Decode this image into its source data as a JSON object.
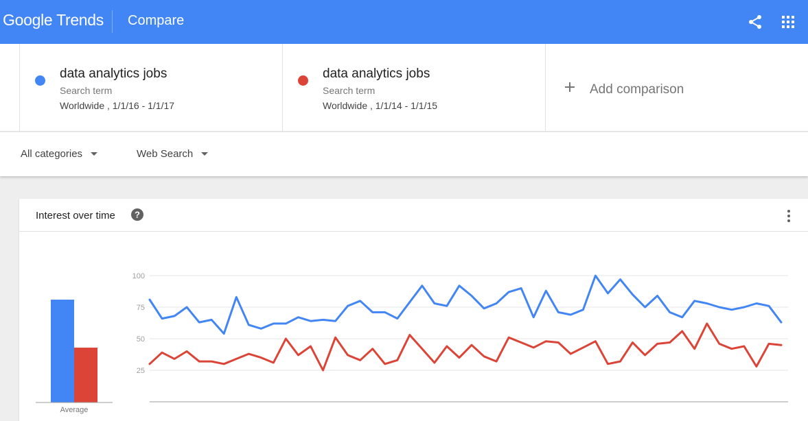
{
  "header": {
    "logo_google": "Google",
    "logo_trends": "Trends",
    "page_name": "Compare",
    "brand_color": "#4285f4",
    "icons": [
      "share-icon",
      "apps-grid-icon"
    ]
  },
  "terms": [
    {
      "name": "data analytics jobs",
      "type": "Search term",
      "range": "Worldwide , 1/1/16 - 1/1/17",
      "color": "#4285f4"
    },
    {
      "name": "data analytics jobs",
      "type": "Search term",
      "range": "Worldwide , 1/1/14 - 1/1/15",
      "color": "#db4437"
    }
  ],
  "add_comparison": {
    "label": "Add comparison",
    "icon": "plus-icon"
  },
  "filters": {
    "category": "All categories",
    "search_type": "Web Search"
  },
  "card": {
    "title": "Interest over time",
    "help_icon": "help-icon",
    "more_icon": "more-vert-icon"
  },
  "chart_data": {
    "type": "line",
    "title": "",
    "xlabel": "",
    "ylabel": "",
    "ylim": [
      0,
      100
    ],
    "yticks": [
      25,
      50,
      75,
      100
    ],
    "grid": true,
    "series": [
      {
        "name": "data analytics jobs",
        "color": "#4285f4",
        "values": [
          81,
          66,
          68,
          75,
          63,
          65,
          54,
          83,
          61,
          58,
          62,
          62,
          67,
          64,
          65,
          64,
          76,
          80,
          71,
          71,
          66,
          79,
          92,
          78,
          76,
          92,
          84,
          74,
          78,
          87,
          90,
          67,
          88,
          71,
          69,
          73,
          100,
          86,
          97,
          85,
          75,
          84,
          71,
          67,
          80,
          78,
          75,
          73,
          75,
          78,
          76,
          63
        ]
      },
      {
        "name": "data analytics jobs",
        "color": "#db4437",
        "values": [
          30,
          39,
          34,
          40,
          32,
          32,
          30,
          34,
          38,
          35,
          31,
          50,
          37,
          44,
          25,
          51,
          37,
          33,
          42,
          30,
          33,
          53,
          42,
          31,
          44,
          35,
          45,
          36,
          32,
          51,
          47,
          43,
          48,
          47,
          38,
          43,
          48,
          30,
          32,
          47,
          37,
          46,
          47,
          56,
          42,
          62,
          46,
          42,
          44,
          28,
          46,
          45
        ]
      }
    ],
    "average_bar": {
      "label": "Average",
      "values": [
        75,
        40
      ],
      "colors": [
        "#4285f4",
        "#db4437"
      ]
    }
  }
}
